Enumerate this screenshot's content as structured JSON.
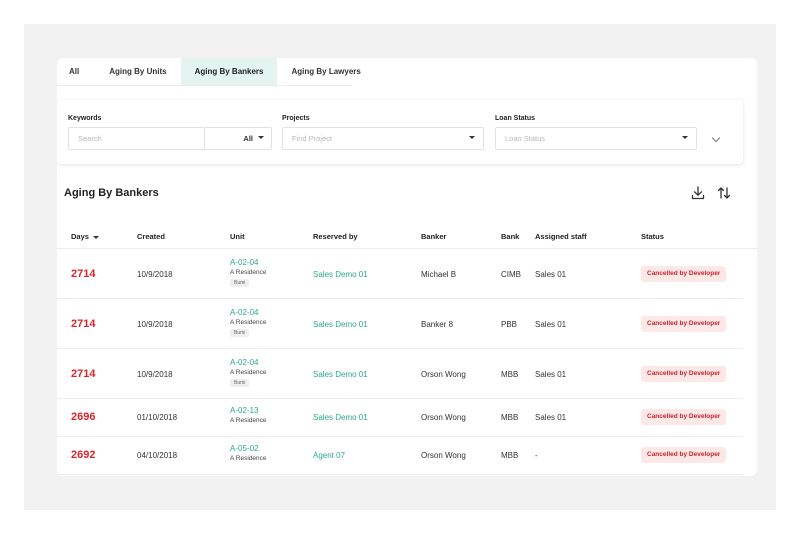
{
  "tabs": [
    {
      "label": "All",
      "active": false
    },
    {
      "label": "Aging By Units",
      "active": false
    },
    {
      "label": "Aging By Bankers",
      "active": true
    },
    {
      "label": "Aging By Lawyers",
      "active": false
    }
  ],
  "filters": {
    "keywords_label": "Keywords",
    "search_placeholder": "Search",
    "keyword_scope": "All",
    "projects_label": "Projects",
    "project_placeholder": "Find Project",
    "loan_status_label": "Loan Status",
    "loan_status_placeholder": "Loan Status"
  },
  "section_title": "Aging By Bankers",
  "table": {
    "headers": {
      "days": "Days",
      "created": "Created",
      "unit": "Unit",
      "reserved_by": "Reserved by",
      "banker": "Banker",
      "bank": "Bank",
      "assigned_staff": "Assigned staff",
      "status": "Status"
    },
    "rows": [
      {
        "days": "2714",
        "created": "10/9/2018",
        "unit_code": "A-02-04",
        "project": "A Residence",
        "tag": "Bumi",
        "reserved_by": "Sales Demo 01",
        "banker": "Michael B",
        "bank": "CIMB",
        "assigned_staff": "Sales 01",
        "status": "Cancelled by Developer"
      },
      {
        "days": "2714",
        "created": "10/9/2018",
        "unit_code": "A-02-04",
        "project": "A Residence",
        "tag": "Bumi",
        "reserved_by": "Sales Demo 01",
        "banker": "Banker 8",
        "bank": "PBB",
        "assigned_staff": "Sales 01",
        "status": "Cancelled by Developer"
      },
      {
        "days": "2714",
        "created": "10/9/2018",
        "unit_code": "A-02-04",
        "project": "A Residence",
        "tag": "Bumi",
        "reserved_by": "Sales Demo 01",
        "banker": "Orson Wong",
        "bank": "MBB",
        "assigned_staff": "Sales 01",
        "status": "Cancelled by Developer"
      },
      {
        "days": "2696",
        "created": "01/10/2018",
        "unit_code": "A-02-13",
        "project": "A Residence",
        "tag": "",
        "reserved_by": "Sales Demo 01",
        "banker": "Orson Wong",
        "bank": "MBB",
        "assigned_staff": "Sales 01",
        "status": "Cancelled by Developer"
      },
      {
        "days": "2692",
        "created": "04/10/2018",
        "unit_code": "A-05-02",
        "project": "A Residence",
        "tag": "",
        "reserved_by": "Agent 07",
        "banker": "Orson Wong",
        "bank": "MBB",
        "assigned_staff": "-",
        "status": "Cancelled by Developer"
      }
    ]
  },
  "icons": {
    "download": "download-icon",
    "sort": "sort-arrows-icon"
  },
  "colors": {
    "accent": "#2aa88f",
    "danger": "#d7262d",
    "badge_bg": "#fde8e8"
  }
}
